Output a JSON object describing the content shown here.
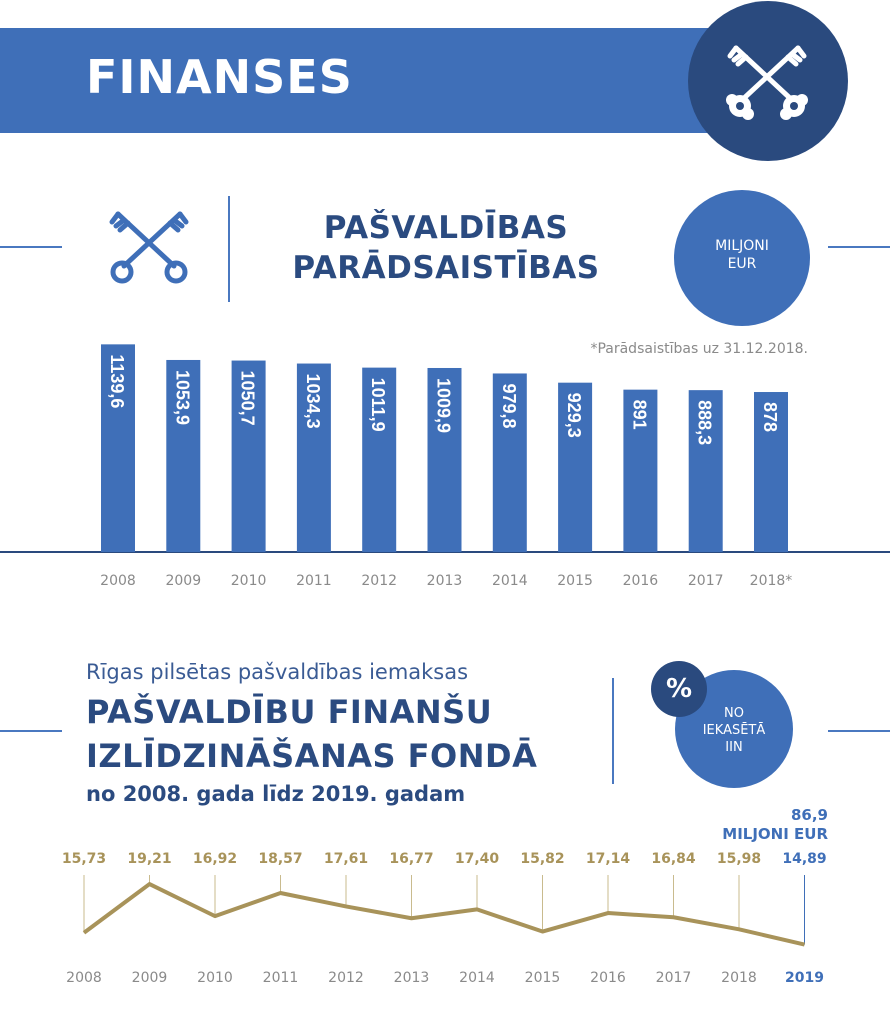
{
  "header": {
    "title": "FINANSES",
    "icon": "crossed-keys-icon"
  },
  "debt_section": {
    "title_line1": "PAŠVALDĪBAS",
    "title_line2": "PARĀDSAISTĪBAS",
    "unit_line1": "MILJONI",
    "unit_line2": "EUR",
    "footnote": "*Parādsaistības uz 31.12.2018.",
    "icon": "crossed-keys-icon"
  },
  "fund_section": {
    "subtitle": "Rīgas pilsētas pašvaldības iemaksas",
    "title_line1": "PAŠVALDĪBU FINANŠU",
    "title_line2": "IZLĪDZINĀŠANAS FONDĀ",
    "year_range": "no 2008. gada līdz 2019. gadam",
    "percent_symbol": "%",
    "circle_line1": "NO",
    "circle_line2": "IEKASĒTĀ",
    "circle_line3": "IIN",
    "annotation_value": "86,9",
    "annotation_unit": "MILJONI EUR"
  },
  "colors": {
    "blue": "#3f6fb8",
    "dark_blue": "#2a4a7e",
    "navy_text": "#2b4b80",
    "gold": "#a8935a",
    "gray": "#8a8a8a"
  },
  "chart_data": [
    {
      "type": "bar",
      "categories": [
        "2008",
        "2009",
        "2010",
        "2011",
        "2012",
        "2013",
        "2014",
        "2015",
        "2016",
        "2017",
        "2018*"
      ],
      "values": [
        1139.6,
        1053.9,
        1050.7,
        1034.3,
        1011.9,
        1009.9,
        979.8,
        929.3,
        891,
        888.3,
        878
      ],
      "labels": [
        "1139,6",
        "1053,9",
        "1050,7",
        "1034,3",
        "1011,9",
        "1009,9",
        "979,8",
        "929,3",
        "891",
        "888,3",
        "878"
      ],
      "ylim": [
        0,
        1200
      ],
      "grid": false
    },
    {
      "type": "line",
      "categories": [
        "2008",
        "2009",
        "2010",
        "2011",
        "2012",
        "2013",
        "2014",
        "2015",
        "2016",
        "2017",
        "2018",
        "2019"
      ],
      "values": [
        15.73,
        19.21,
        16.92,
        18.57,
        17.61,
        16.77,
        17.4,
        15.82,
        17.14,
        16.84,
        15.98,
        14.89
      ],
      "labels": [
        "15,73",
        "19,21",
        "16,92",
        "18,57",
        "17,61",
        "16,77",
        "17,40",
        "15,82",
        "17,14",
        "16,84",
        "15,98",
        "14,89"
      ],
      "highlight_category": "2019",
      "grid": false
    }
  ]
}
